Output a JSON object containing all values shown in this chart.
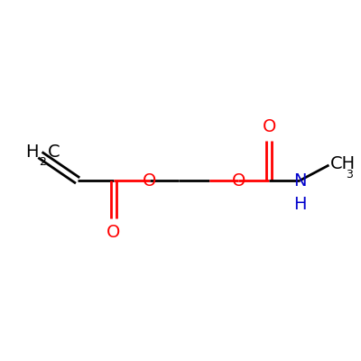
{
  "bg_color": "#ffffff",
  "bond_color": "#000000",
  "o_color": "#ff0000",
  "n_color": "#0000cc",
  "line_width": 2.0,
  "figsize": [
    4.0,
    4.0
  ],
  "dpi": 100,
  "xlim": [
    0,
    10
  ],
  "ylim": [
    2,
    8
  ],
  "fs": 14,
  "fs_sub": 9
}
